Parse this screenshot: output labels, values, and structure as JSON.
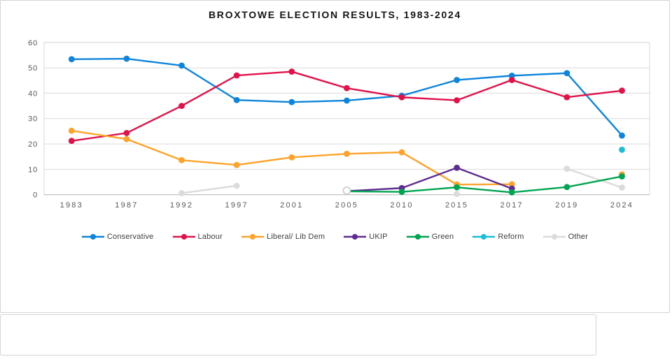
{
  "title": "BROXTOWE ELECTION RESULTS, 1983-2024",
  "chart_data": {
    "type": "line",
    "title": "BROXTOWE ELECTION RESULTS, 1983-2024",
    "categories": [
      "1983",
      "1987",
      "1992",
      "1997",
      "2001",
      "2005",
      "2010",
      "2015",
      "2017",
      "2019",
      "2024"
    ],
    "series": [
      {
        "name": "Conservative",
        "color": "#0e84db",
        "values": [
          53.4,
          53.6,
          50.9,
          37.3,
          36.5,
          37.1,
          39.0,
          45.2,
          46.9,
          47.9,
          23.3
        ]
      },
      {
        "name": "Labour",
        "color": "#e0124a",
        "values": [
          21.2,
          24.3,
          35.0,
          47.0,
          48.5,
          42.0,
          38.4,
          37.2,
          45.2,
          38.4,
          41.0
        ]
      },
      {
        "name": "Liberal/ Lib Dem",
        "color": "#fda32c",
        "values": [
          25.2,
          21.9,
          13.6,
          11.7,
          14.7,
          16.1,
          16.7,
          4.0,
          4.1,
          null,
          8.0
        ]
      },
      {
        "name": "UKIP",
        "color": "#5e2d91",
        "values": [
          null,
          null,
          null,
          null,
          null,
          1.4,
          2.6,
          10.6,
          2.4,
          null,
          null
        ]
      },
      {
        "name": "Green",
        "color": "#00a551",
        "values": [
          null,
          null,
          null,
          null,
          null,
          1.3,
          1.1,
          2.9,
          0.9,
          3.0,
          7.2
        ]
      },
      {
        "name": "Reform",
        "color": "#1cbdd6",
        "values": [
          null,
          null,
          null,
          null,
          null,
          null,
          null,
          null,
          null,
          null,
          17.7
        ]
      },
      {
        "name": "Other",
        "color": "#dbdbdb",
        "values": [
          null,
          null,
          0.6,
          3.5,
          null,
          1.6,
          null,
          0.3,
          null,
          10.2,
          2.8
        ]
      }
    ],
    "ylim": [
      0,
      60
    ],
    "yticks": [
      0,
      10,
      20,
      30,
      40,
      50,
      60
    ],
    "xlabel": "",
    "ylabel": "",
    "grid": true,
    "legend_position": "bottom",
    "marker_overrides": [
      {
        "series": "Other",
        "category": "2005",
        "style": "open"
      }
    ]
  }
}
